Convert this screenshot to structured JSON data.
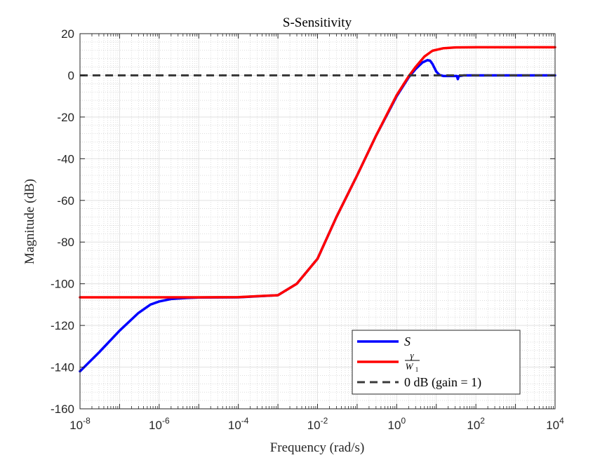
{
  "chart_data": {
    "type": "line",
    "title": "S-Sensitivity",
    "xlabel": "Frequency (rad/s)",
    "ylabel": "Magnitude (dB)",
    "xscale": "log",
    "xlim": [
      1e-08,
      10000.0
    ],
    "ylim": [
      -160,
      20
    ],
    "grid": true,
    "minor_grid": true,
    "legend_position": "bottom-right",
    "x_ticks": [
      {
        "base": "10",
        "exp": "-8"
      },
      {
        "base": "10",
        "exp": "-6"
      },
      {
        "base": "10",
        "exp": "-4"
      },
      {
        "base": "10",
        "exp": "-2"
      },
      {
        "base": "10",
        "exp": "0"
      },
      {
        "base": "10",
        "exp": "2"
      },
      {
        "base": "10",
        "exp": "4"
      }
    ],
    "y_ticks": [
      "20",
      "0",
      "-20",
      "-40",
      "-60",
      "-80",
      "-100",
      "-120",
      "-140",
      "-160"
    ],
    "series": [
      {
        "name": "S",
        "color": "#0000ff",
        "line_style": "solid",
        "points": [
          [
            1e-08,
            -142
          ],
          [
            3e-08,
            -133
          ],
          [
            1e-07,
            -122.5
          ],
          [
            3e-07,
            -114
          ],
          [
            6e-07,
            -110
          ],
          [
            1e-06,
            -108.5
          ],
          [
            2e-06,
            -107.3
          ],
          [
            5e-06,
            -106.8
          ],
          [
            1e-05,
            -106.6
          ],
          [
            0.0001,
            -106.5
          ],
          [
            0.001,
            -105.5
          ],
          [
            0.003,
            -100
          ],
          [
            0.01,
            -88
          ],
          [
            0.03,
            -68
          ],
          [
            0.1,
            -48
          ],
          [
            0.3,
            -29
          ],
          [
            1,
            -10
          ],
          [
            2,
            -1
          ],
          [
            3,
            3
          ],
          [
            4.5,
            6.2
          ],
          [
            6,
            7.3
          ],
          [
            7,
            7
          ],
          [
            8,
            5.5
          ],
          [
            10,
            1.8
          ],
          [
            12,
            0.2
          ],
          [
            15,
            -0.3
          ],
          [
            25,
            -0.3
          ],
          [
            33,
            -0.3
          ],
          [
            35,
            -1.8
          ],
          [
            37,
            -0.4
          ],
          [
            50,
            0
          ],
          [
            10000.0,
            0
          ]
        ]
      },
      {
        "name": "γ / W1",
        "color": "#ff0000",
        "line_style": "solid",
        "points": [
          [
            1e-08,
            -106.5
          ],
          [
            1e-05,
            -106.5
          ],
          [
            0.0001,
            -106.4
          ],
          [
            0.001,
            -105.5
          ],
          [
            0.003,
            -100
          ],
          [
            0.01,
            -88
          ],
          [
            0.03,
            -68
          ],
          [
            0.1,
            -48
          ],
          [
            0.3,
            -29
          ],
          [
            1,
            -9.5
          ],
          [
            2,
            -0.5
          ],
          [
            3,
            4
          ],
          [
            5,
            9
          ],
          [
            8,
            11.8
          ],
          [
            15,
            13
          ],
          [
            30,
            13.4
          ],
          [
            100,
            13.5
          ],
          [
            10000.0,
            13.5
          ]
        ]
      },
      {
        "name": "0 dB (gain = 1)",
        "color": "#3a3a3a",
        "line_style": "dashed",
        "points": [
          [
            1e-08,
            0
          ],
          [
            10000.0,
            0
          ]
        ]
      }
    ],
    "legend": [
      {
        "label": "S",
        "style": "italic"
      },
      {
        "label": "γ / W1",
        "style": "fraction"
      },
      {
        "label": "0 dB (gain = 1)",
        "style": "plain"
      }
    ]
  }
}
